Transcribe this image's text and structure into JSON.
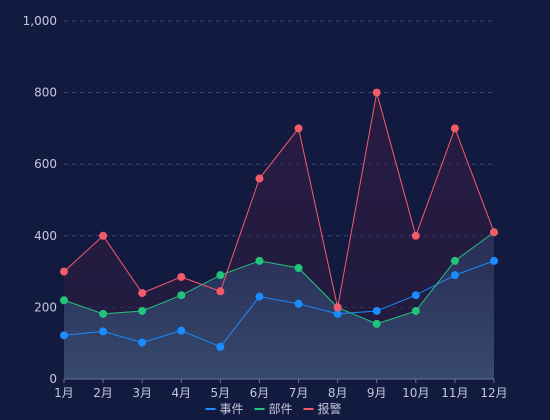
{
  "chart_data": {
    "type": "line",
    "categories": [
      "1月",
      "2月",
      "3月",
      "4月",
      "5月",
      "6月",
      "7月",
      "8月",
      "9月",
      "10月",
      "11月",
      "12月"
    ],
    "ylim": [
      0,
      1000
    ],
    "yticks": [
      "0",
      "200",
      "400",
      "600",
      "800",
      "1,000"
    ],
    "ytick_values": [
      0,
      200,
      400,
      600,
      800,
      1000
    ],
    "grid": true,
    "legend_position": "bottom-center",
    "series": [
      {
        "name": "事件",
        "color": "#1a8cff",
        "values": [
          122,
          133,
          102,
          135,
          90,
          230,
          210,
          182,
          190,
          234,
          290,
          330
        ]
      },
      {
        "name": "部件",
        "color": "#22c37a",
        "values": [
          220,
          182,
          190,
          234,
          290,
          330,
          310,
          200,
          154,
          190,
          330,
          410
        ]
      },
      {
        "name": "报警",
        "color": "#f45b6a",
        "values": [
          300,
          400,
          240,
          285,
          245,
          560,
          700,
          200,
          800,
          400,
          700,
          410
        ]
      }
    ]
  }
}
